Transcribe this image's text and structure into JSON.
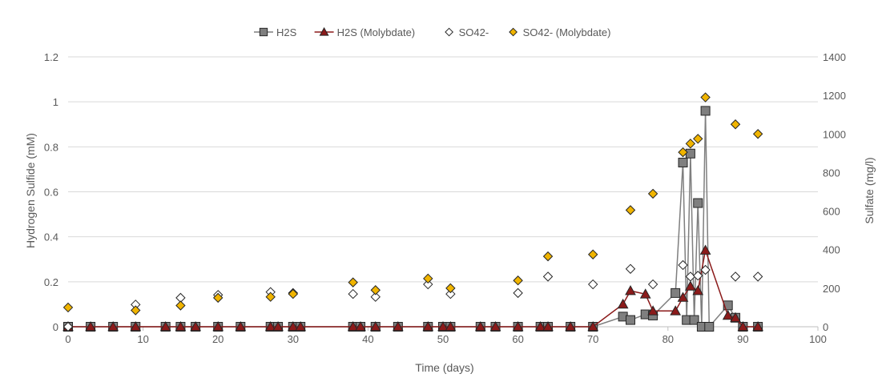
{
  "chart_data": {
    "type": "scatter",
    "xlabel": "Time (days)",
    "ylabel": "Hydrogen Sulfide (mM)",
    "y2label": "Sulfate  (mg/l)",
    "xlim": [
      0,
      100
    ],
    "ylim": [
      0,
      1.2
    ],
    "y2lim": [
      0,
      1400
    ],
    "x_ticks": [
      0,
      10,
      20,
      30,
      40,
      50,
      60,
      70,
      80,
      90,
      100
    ],
    "y_ticks": [
      "0",
      "0.2",
      "0.4",
      "0.6",
      "0.8",
      "1",
      "1.2"
    ],
    "y_tick_values": [
      0,
      0.2,
      0.4,
      0.6,
      0.8,
      1.0,
      1.2
    ],
    "y2_ticks": [
      0,
      200,
      400,
      600,
      800,
      1000,
      1200,
      1400
    ],
    "legend_position": "top",
    "grid": "horizontal",
    "series": [
      {
        "name": "H2S",
        "axis": "left",
        "style": "line-square",
        "color": "#7f7f7f",
        "x": [
          0,
          3,
          6,
          9,
          13,
          15,
          17,
          20,
          23,
          27,
          28,
          30,
          31,
          38,
          39,
          41,
          44,
          48,
          50,
          51,
          55,
          57,
          60,
          63,
          64,
          67,
          70,
          74,
          75,
          77,
          78,
          81,
          82,
          82.5,
          83,
          83.5,
          84,
          84.5,
          85,
          85.5,
          88,
          89,
          90,
          92
        ],
        "y": [
          0,
          0,
          0,
          0,
          0,
          0,
          0,
          0,
          0,
          0,
          0,
          0,
          0,
          0,
          0,
          0,
          0,
          0,
          0,
          0,
          0,
          0,
          0,
          0,
          0,
          0,
          0,
          0.045,
          0.03,
          0.055,
          0.05,
          0.15,
          0.73,
          0.03,
          0.77,
          0.03,
          0.55,
          0,
          0.96,
          0,
          0.095,
          0.04,
          0,
          0
        ]
      },
      {
        "name": "H2S (Molybdate)",
        "axis": "left",
        "style": "line-triangle",
        "color": "#8b1a1a",
        "x": [
          0,
          3,
          6,
          9,
          13,
          15,
          17,
          20,
          23,
          27,
          28,
          30,
          31,
          38,
          39,
          41,
          44,
          48,
          50,
          51,
          55,
          57,
          60,
          63,
          64,
          67,
          70,
          74,
          75,
          77,
          78,
          81,
          82,
          83,
          84,
          85,
          88,
          89,
          90,
          92
        ],
        "y": [
          0,
          0,
          0,
          0,
          0,
          0,
          0,
          0,
          0,
          0,
          0,
          0,
          0,
          0,
          0,
          0,
          0,
          0,
          0,
          0,
          0,
          0,
          0,
          0,
          0,
          0,
          0,
          0.1,
          0.16,
          0.145,
          0.07,
          0.07,
          0.13,
          0.18,
          0.16,
          0.34,
          0.05,
          0.04,
          0,
          0
        ]
      },
      {
        "name": "SO42-",
        "axis": "right",
        "style": "marker-diamond-open",
        "color": "#ffffff",
        "x": [
          0,
          9,
          15,
          20,
          27,
          30,
          38,
          41,
          48,
          51,
          60,
          64,
          70,
          75,
          78,
          82,
          83,
          84,
          85,
          89,
          92
        ],
        "y": [
          0,
          115,
          150,
          165,
          180,
          175,
          170,
          155,
          220,
          170,
          175,
          260,
          220,
          300,
          220,
          320,
          260,
          265,
          295,
          260,
          260
        ]
      },
      {
        "name": "SO42- (Molybdate)",
        "axis": "right",
        "style": "marker-diamond-filled",
        "color": "#f0b400",
        "x": [
          0,
          9,
          15,
          20,
          27,
          30,
          38,
          41,
          48,
          51,
          60,
          64,
          70,
          75,
          78,
          82,
          83,
          84,
          85,
          89,
          92
        ],
        "y": [
          100,
          85,
          110,
          150,
          155,
          170,
          230,
          190,
          250,
          200,
          240,
          365,
          375,
          605,
          690,
          905,
          950,
          975,
          1190,
          1050,
          1000
        ]
      }
    ]
  }
}
